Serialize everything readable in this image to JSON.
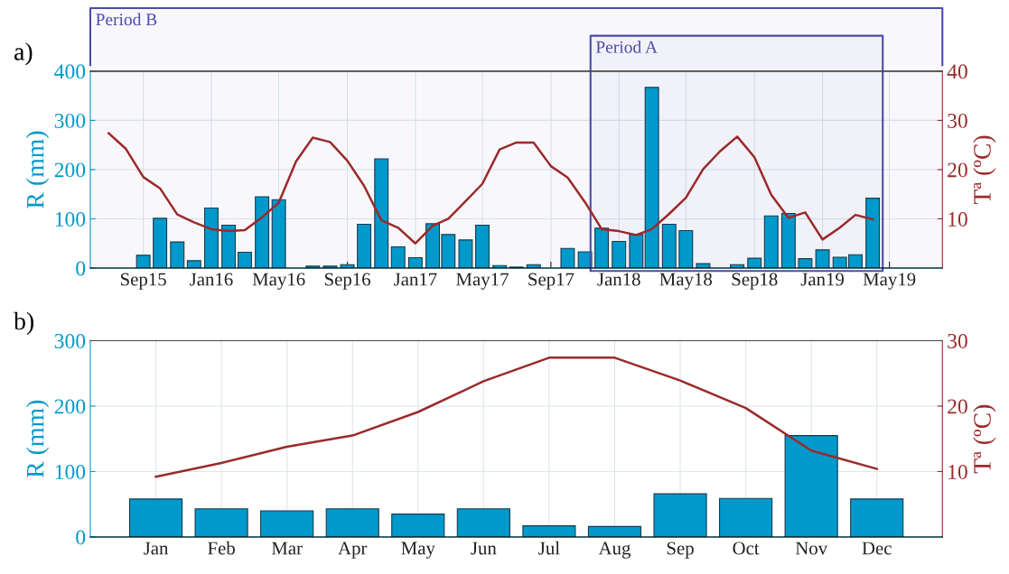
{
  "chart_data": [
    {
      "type": "bar",
      "title": "a)",
      "ylabel": "R (mm)",
      "y2label": "Tª (ºC)",
      "xlim": [
        "2015-05-29",
        "2019-08-04"
      ],
      "xticks": [
        {
          "value": "2015-09-01",
          "label": "Sep15"
        },
        {
          "value": "2016-01-01",
          "label": "Jan16"
        },
        {
          "value": "2016-05-01",
          "label": "May16"
        },
        {
          "value": "2016-09-01",
          "label": "Sep16"
        },
        {
          "value": "2017-01-01",
          "label": "Jan17"
        },
        {
          "value": "2017-05-01",
          "label": "May17"
        },
        {
          "value": "2017-09-01",
          "label": "Sep17"
        },
        {
          "value": "2018-01-01",
          "label": "Jan18"
        },
        {
          "value": "2018-05-01",
          "label": "May18"
        },
        {
          "value": "2018-09-01",
          "label": "Sep18"
        },
        {
          "value": "2019-01-01",
          "label": "Jan19"
        },
        {
          "value": "2019-05-01",
          "label": "May19"
        }
      ],
      "ylim": [
        0,
        400
      ],
      "yticks": [
        0,
        100,
        200,
        300,
        400
      ],
      "y2lim": [
        0,
        40
      ],
      "y2ticks": [
        10,
        20,
        30,
        40
      ],
      "grid": true,
      "bands": [
        {
          "axis": "x",
          "from": "2015-05-29",
          "to": "2019-08-04",
          "label": "Period B",
          "color": "#4b4bab"
        },
        {
          "axis": "x",
          "from": "2017-11-11",
          "to": "2019-04-19",
          "label": "Period A",
          "color": "#4b4bab"
        }
      ],
      "series": [
        {
          "color": "#0099cc",
          "x": [
            "2015-09-01",
            "2015-10-01",
            "2015-11-01",
            "2015-12-01",
            "2016-01-01",
            "2016-02-01",
            "2016-03-01",
            "2016-04-01",
            "2016-05-01",
            "2016-06-01",
            "2016-07-01",
            "2016-08-01",
            "2016-09-01",
            "2016-10-01",
            "2016-11-01",
            "2016-12-01",
            "2017-01-01",
            "2017-02-01",
            "2017-03-01",
            "2017-04-01",
            "2017-05-01",
            "2017-06-01",
            "2017-07-01",
            "2017-08-01",
            "2017-09-01",
            "2017-10-01",
            "2017-11-01",
            "2017-12-01",
            "2018-01-01",
            "2018-02-01",
            "2018-03-01",
            "2018-04-01",
            "2018-05-01",
            "2018-06-01",
            "2018-07-01",
            "2018-08-01",
            "2018-09-01",
            "2018-10-01",
            "2018-11-01",
            "2018-12-01",
            "2019-01-01",
            "2019-02-01",
            "2019-03-01",
            "2019-04-01"
          ],
          "values": [
            26,
            101,
            53,
            15,
            122,
            87,
            32,
            145,
            139,
            null,
            4,
            4,
            7,
            89,
            222,
            43,
            21,
            90,
            68,
            57,
            87,
            5,
            2,
            7,
            null,
            40,
            33,
            81,
            54,
            68,
            367,
            89,
            76,
            9,
            null,
            7,
            20,
            106,
            111,
            19,
            37,
            22,
            27,
            142
          ]
        },
        {
          "type": "line",
          "axis": "y2",
          "color": "#9b2a2a",
          "x": [
            "2015-07-01",
            "2015-08-01",
            "2015-09-01",
            "2015-10-01",
            "2015-11-01",
            "2015-12-01",
            "2016-01-01",
            "2016-02-01",
            "2016-03-01",
            "2016-04-01",
            "2016-05-01",
            "2016-06-01",
            "2016-07-01",
            "2016-08-01",
            "2016-09-01",
            "2016-10-01",
            "2016-11-01",
            "2016-12-01",
            "2017-01-01",
            "2017-02-01",
            "2017-03-01",
            "2017-04-01",
            "2017-05-01",
            "2017-06-01",
            "2017-07-01",
            "2017-08-01",
            "2017-09-01",
            "2017-10-01",
            "2017-11-01",
            "2017-12-01",
            "2018-01-01",
            "2018-02-01",
            "2018-03-01",
            "2018-04-01",
            "2018-05-01",
            "2018-06-01",
            "2018-07-01",
            "2018-08-01",
            "2018-09-01",
            "2018-10-01",
            "2018-11-01",
            "2018-12-01",
            "2019-01-01",
            "2019-02-01",
            "2019-03-01",
            "2019-04-01"
          ],
          "values": [
            27.4,
            24.2,
            18.5,
            16.2,
            10.9,
            9.3,
            7.9,
            7.5,
            7.7,
            10.3,
            13.3,
            21.7,
            26.5,
            25.6,
            21.8,
            16.7,
            9.7,
            8.2,
            5.0,
            8.6,
            10.0,
            13.6,
            17.1,
            24.1,
            25.5,
            25.5,
            20.7,
            18.4,
            13.4,
            7.9,
            7.5,
            6.7,
            7.9,
            11.0,
            14.3,
            20.1,
            23.7,
            26.7,
            22.5,
            14.9,
            10.2,
            11.3,
            5.8,
            8.2,
            10.8,
            9.9
          ]
        }
      ]
    },
    {
      "type": "bar",
      "title": "b)",
      "ylabel": "R (mm)",
      "y2label": "Tª (ºC)",
      "categories": [
        "Jan",
        "Feb",
        "Mar",
        "Apr",
        "May",
        "Jun",
        "Jul",
        "Aug",
        "Sep",
        "Oct",
        "Nov",
        "Dec"
      ],
      "ylim": [
        0,
        300
      ],
      "yticks": [
        0,
        100,
        200,
        300
      ],
      "y2lim": [
        0,
        30
      ],
      "y2ticks": [
        10,
        20,
        30
      ],
      "grid": true,
      "series": [
        {
          "color": "#0099cc",
          "values": [
            58,
            43,
            40,
            43,
            35,
            43,
            17,
            16,
            66,
            59,
            155,
            58
          ]
        },
        {
          "type": "line",
          "axis": "y2",
          "color": "#9b2a2a",
          "values": [
            9.2,
            11.3,
            13.8,
            15.5,
            19.1,
            23.8,
            27.4,
            27.4,
            23.9,
            19.7,
            13.2,
            10.4
          ]
        }
      ]
    }
  ]
}
